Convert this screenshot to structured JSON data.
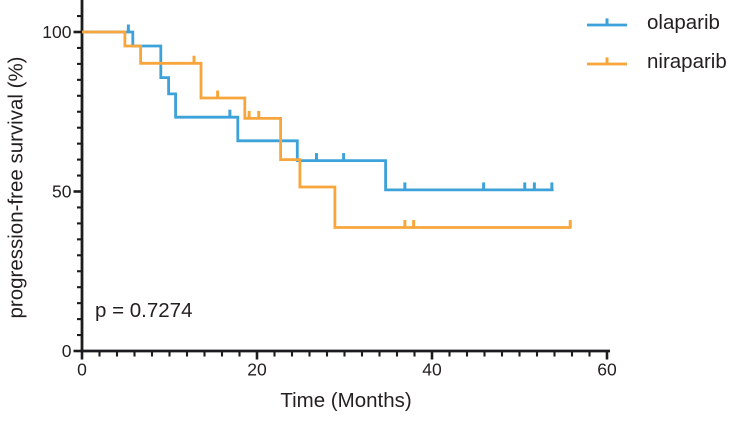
{
  "chart_data": {
    "type": "line",
    "subtype": "kaplan-meier-step-curve",
    "title": "",
    "xlabel": "Time (Months)",
    "ylabel": "progression-free survival (%)",
    "xlim": [
      0,
      60
    ],
    "ylim": [
      0,
      105
    ],
    "x_ticks_major": [
      0,
      20,
      40,
      60
    ],
    "x_minor_step": 2,
    "y_ticks_major": [
      100,
      50,
      0
    ],
    "y_minor_step": 5,
    "grid": false,
    "legend_position": "top-right",
    "annotations": [
      {
        "text": "p = 0.7274"
      }
    ],
    "colors": {
      "axis": "#1c1c1e",
      "text": "#231f20",
      "background": "#ffffff"
    },
    "series": [
      {
        "name": "olaparib",
        "color": "#3ea2da",
        "steps": [
          [
            0,
            100
          ],
          [
            5.8,
            100
          ],
          [
            5.8,
            95.6
          ],
          [
            9.0,
            95.6
          ],
          [
            9.0,
            85.7
          ],
          [
            9.9,
            85.7
          ],
          [
            9.9,
            80.6
          ],
          [
            10.7,
            80.6
          ],
          [
            10.7,
            73.3
          ],
          [
            17.8,
            73.3
          ],
          [
            17.8,
            65.9
          ],
          [
            24.6,
            65.9
          ],
          [
            24.6,
            59.7
          ],
          [
            34.7,
            59.7
          ],
          [
            34.7,
            50.5
          ],
          [
            53.9,
            50.5
          ]
        ],
        "censor_marks": [
          [
            5.3,
            100
          ],
          [
            16.9,
            73.3
          ],
          [
            26.8,
            59.7
          ],
          [
            29.9,
            59.7
          ],
          [
            36.9,
            50.5
          ],
          [
            45.9,
            50.5
          ],
          [
            50.6,
            50.5
          ],
          [
            51.7,
            50.5
          ],
          [
            53.7,
            50.5
          ]
        ]
      },
      {
        "name": "niraparib",
        "color": "#f8a63c",
        "steps": [
          [
            0,
            100
          ],
          [
            4.9,
            100
          ],
          [
            4.9,
            95.6
          ],
          [
            6.7,
            95.6
          ],
          [
            6.7,
            90.2
          ],
          [
            13.6,
            90.2
          ],
          [
            13.6,
            79.3
          ],
          [
            18.6,
            79.3
          ],
          [
            18.6,
            72.9
          ],
          [
            22.7,
            72.9
          ],
          [
            22.7,
            60.0
          ],
          [
            24.9,
            60.0
          ],
          [
            24.9,
            51.4
          ],
          [
            28.9,
            51.4
          ],
          [
            28.9,
            38.7
          ],
          [
            55.9,
            38.7
          ]
        ],
        "censor_marks": [
          [
            12.8,
            90.2
          ],
          [
            15.5,
            79.3
          ],
          [
            19.1,
            72.9
          ],
          [
            20.2,
            72.9
          ],
          [
            36.9,
            38.7
          ],
          [
            37.9,
            38.7
          ],
          [
            55.8,
            38.7
          ]
        ]
      }
    ]
  }
}
